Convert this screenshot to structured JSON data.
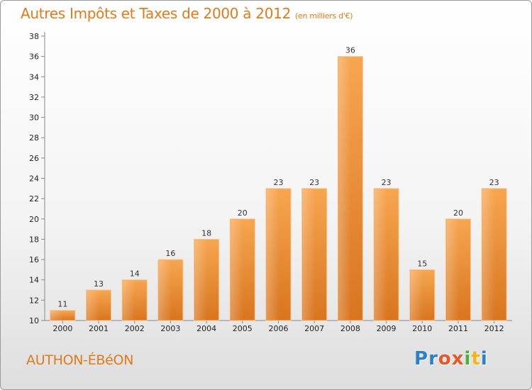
{
  "chart_data": {
    "type": "bar",
    "title": "Autres Impôts et Taxes de 2000 à 2012",
    "subtitle": "(en milliers d'€)",
    "categories": [
      "2000",
      "2001",
      "2002",
      "2003",
      "2004",
      "2005",
      "2006",
      "2007",
      "2008",
      "2009",
      "2010",
      "2011",
      "2012"
    ],
    "values": [
      11,
      13,
      14,
      16,
      18,
      20,
      23,
      23,
      36,
      23,
      15,
      20,
      23
    ],
    "ylim": [
      10,
      38
    ],
    "yticks": [
      10,
      12,
      14,
      16,
      18,
      20,
      22,
      24,
      26,
      28,
      30,
      32,
      34,
      36,
      38
    ],
    "grid": false,
    "bar_color": "#f0943a"
  },
  "location": "AUTHON-ÉBéON",
  "logo": {
    "letters": [
      "P",
      "r",
      "o",
      "x",
      "i",
      "t",
      "i"
    ],
    "colors": [
      "#2f7fc8",
      "#2f7fc8",
      "#e8572b",
      "#e8572b",
      "#4caf3c",
      "#f3b51b",
      "#2f7fc8"
    ]
  }
}
